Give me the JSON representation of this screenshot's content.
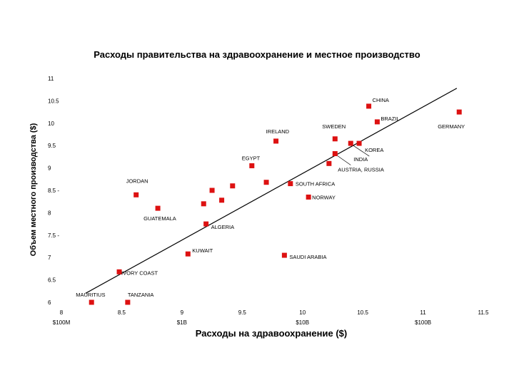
{
  "chart_data": {
    "type": "scatter",
    "title": "Расходы правительства на здравоохранение и местное производство",
    "xlabel": "Расходы на здравоохранение ($)",
    "ylabel": "Объем местного производства ($)",
    "xlim": [
      8,
      11.5
    ],
    "ylim": [
      6,
      11
    ],
    "x_ticks": [
      "8",
      "8.5",
      "9",
      "9.5",
      "10",
      "10.5",
      "11",
      "11.5"
    ],
    "x_tick_values": [
      8,
      8.5,
      9,
      9.5,
      10,
      10.5,
      11,
      11.5
    ],
    "x_money_ticks": [
      "$100M",
      "$1B",
      "$10B",
      "$100B"
    ],
    "x_money_values": [
      8,
      9,
      10,
      11
    ],
    "y_ticks": [
      "6",
      "6.5",
      "7",
      "7.5 -",
      "8",
      "8.5 -",
      "9",
      "9.5",
      "10",
      "10.5",
      "11"
    ],
    "y_tick_values": [
      6,
      6.5,
      7,
      7.5,
      8,
      8.5,
      9,
      9.5,
      10,
      10.5,
      11
    ],
    "marker_color": "#dd1111",
    "trend_line": {
      "x": [
        8.2,
        11.28
      ],
      "y": [
        6.2,
        10.78
      ]
    },
    "points": [
      {
        "x": 8.25,
        "y": 6.0,
        "label": "MAURITIUS"
      },
      {
        "x": 8.55,
        "y": 6.0,
        "label": "TANZANIA"
      },
      {
        "x": 8.48,
        "y": 6.68,
        "label": "IVORY COAST"
      },
      {
        "x": 9.05,
        "y": 7.08,
        "label": "KUWAIT"
      },
      {
        "x": 8.62,
        "y": 8.4,
        "label": "JORDAN"
      },
      {
        "x": 8.8,
        "y": 8.1,
        "label": "GUATEMALA"
      },
      {
        "x": 9.2,
        "y": 7.75,
        "label": "ALGERIA"
      },
      {
        "x": 9.58,
        "y": 9.05,
        "label": "EGYPT"
      },
      {
        "x": 9.78,
        "y": 9.6,
        "label": "IRELAND"
      },
      {
        "x": 9.85,
        "y": 7.05,
        "label": "SAUDI ARABIA"
      },
      {
        "x": 9.9,
        "y": 8.65,
        "label": "SOUTH AFRICA"
      },
      {
        "x": 10.05,
        "y": 8.35,
        "label": "NORWAY"
      },
      {
        "x": 10.27,
        "y": 9.65,
        "label": "SWEDEN"
      },
      {
        "x": 10.4,
        "y": 9.55,
        "label": "INDIA"
      },
      {
        "x": 10.55,
        "y": 10.38,
        "label": "CHINA"
      },
      {
        "x": 10.62,
        "y": 10.03,
        "label": "BRAZIL"
      },
      {
        "x": 10.47,
        "y": 9.55,
        "label": "KOREA"
      },
      {
        "x": 10.27,
        "y": 9.32,
        "label": "AUSTRIA, RUSSIA"
      },
      {
        "x": 11.3,
        "y": 10.25,
        "label": "GERMANY"
      },
      {
        "x": 9.18,
        "y": 8.2,
        "label": ""
      },
      {
        "x": 9.25,
        "y": 8.5,
        "label": ""
      },
      {
        "x": 9.33,
        "y": 8.28,
        "label": ""
      },
      {
        "x": 9.42,
        "y": 8.6,
        "label": ""
      },
      {
        "x": 9.7,
        "y": 8.68,
        "label": ""
      },
      {
        "x": 10.22,
        "y": 9.1,
        "label": ""
      }
    ]
  }
}
